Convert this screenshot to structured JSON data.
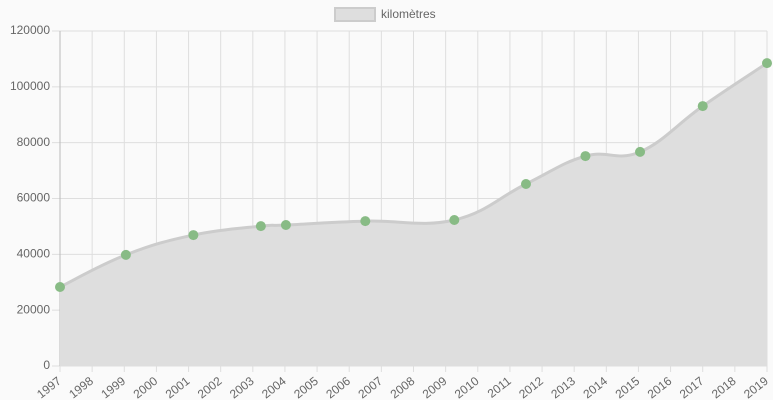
{
  "chart_data": {
    "type": "area",
    "x": [
      1997.0,
      1999.05,
      2001.15,
      2003.25,
      2004.03,
      2006.5,
      2009.27,
      2011.5,
      2013.35,
      2015.05,
      2017.0,
      2019.0
    ],
    "series": [
      {
        "name": "kilomètres",
        "color": "#dedede",
        "line_color": "#cccccc",
        "point_color": "#88bb85",
        "values": [
          28300,
          39800,
          46900,
          50100,
          50500,
          51900,
          52300,
          65200,
          75200,
          76700,
          93100,
          108500
        ]
      }
    ],
    "xlim": [
      1997,
      2019
    ],
    "xticks": [
      1997,
      1998,
      1999,
      2000,
      2001,
      2002,
      2003,
      2004,
      2005,
      2006,
      2007,
      2008,
      2009,
      2010,
      2011,
      2012,
      2013,
      2014,
      2015,
      2016,
      2017,
      2018,
      2019
    ],
    "ylim": [
      0,
      120000
    ],
    "yticks": [
      0,
      20000,
      40000,
      60000,
      80000,
      100000,
      120000
    ],
    "grid": true,
    "legend": "top"
  }
}
